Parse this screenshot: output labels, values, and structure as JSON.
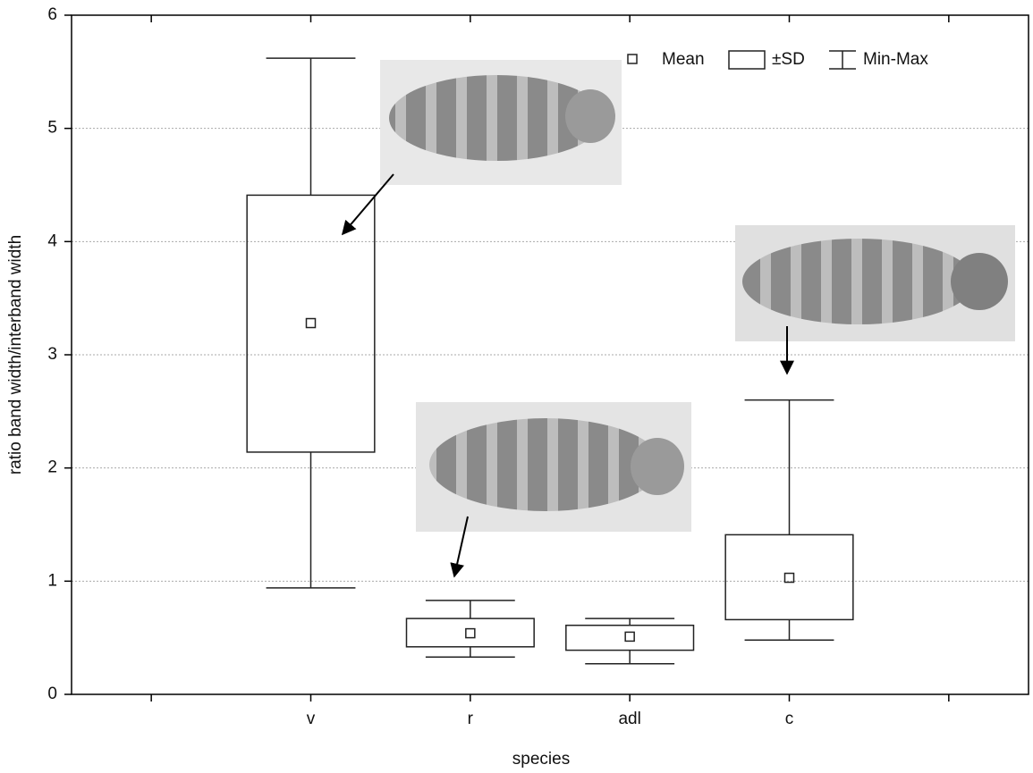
{
  "chart_data": {
    "type": "box",
    "y_label": "ratio band width/interband width",
    "x_label": "species",
    "categories": [
      null,
      "v",
      "r",
      "adl",
      "c",
      null
    ],
    "mean": {
      "name": "Mean",
      "values": [
        null,
        3.28,
        0.54,
        0.51,
        1.03,
        null
      ]
    },
    "sd": {
      "name": "±SD",
      "high": [
        null,
        4.41,
        0.67,
        0.61,
        1.41,
        null
      ],
      "low": [
        null,
        2.14,
        0.42,
        0.39,
        0.66,
        null
      ]
    },
    "minmax": {
      "name": "Min-Max",
      "max": [
        null,
        5.62,
        0.83,
        0.67,
        2.6,
        null
      ],
      "min": [
        null,
        0.94,
        0.33,
        0.27,
        0.48,
        null
      ]
    },
    "ylim": [
      0,
      6
    ],
    "yticks": [
      0,
      1,
      2,
      3,
      4,
      5,
      6
    ],
    "grid": true
  }
}
